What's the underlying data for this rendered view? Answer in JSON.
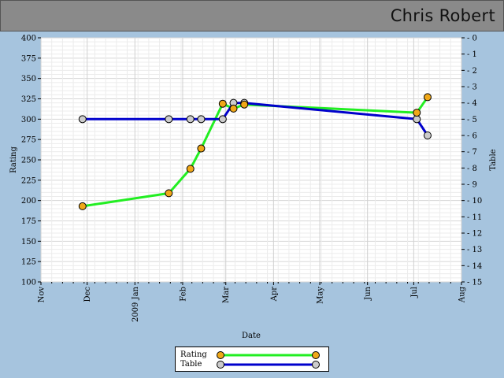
{
  "header": {
    "title": "Chris Robert"
  },
  "colors": {
    "rating_line": "#22ee22",
    "rating_marker": "#f0a818",
    "table_line": "#0000cc",
    "table_marker": "#cccccc",
    "background": "#a6c4de",
    "header": "#8a8a8a"
  },
  "chart_data": {
    "type": "line",
    "xlabel": "Date",
    "ylabel": "Rating",
    "y2label": "Table",
    "ylim": [
      100,
      400
    ],
    "y2lim": [
      0,
      15
    ],
    "y2_inverted": true,
    "xlim": [
      "2008-11-01",
      "2009-08-01"
    ],
    "x_ticks": [
      {
        "date": "2008-11-01",
        "label": "Nov"
      },
      {
        "date": "2008-12-01",
        "label": "Dec"
      },
      {
        "date": "2009-01-01",
        "label": "2009 Jan"
      },
      {
        "date": "2009-02-01",
        "label": "Feb"
      },
      {
        "date": "2009-03-01",
        "label": "Mar"
      },
      {
        "date": "2009-04-01",
        "label": "Apr"
      },
      {
        "date": "2009-05-01",
        "label": "May"
      },
      {
        "date": "2009-06-01",
        "label": "Jun"
      },
      {
        "date": "2009-07-01",
        "label": "Jul"
      },
      {
        "date": "2009-08-01",
        "label": "Aug"
      }
    ],
    "y_ticks": [
      100,
      125,
      150,
      175,
      200,
      225,
      250,
      275,
      300,
      325,
      350,
      375,
      400
    ],
    "y2_ticks": [
      0,
      1,
      2,
      3,
      4,
      5,
      6,
      7,
      8,
      9,
      10,
      11,
      12,
      13,
      14,
      15
    ],
    "grid": true,
    "legend_position": "bottom-center",
    "series": [
      {
        "name": "Rating",
        "axis": "left",
        "points": [
          {
            "x": "2008-11-28",
            "y": 193
          },
          {
            "x": "2009-01-23",
            "y": 209
          },
          {
            "x": "2009-02-06",
            "y": 239
          },
          {
            "x": "2009-02-13",
            "y": 264
          },
          {
            "x": "2009-02-27",
            "y": 319
          },
          {
            "x": "2009-03-06",
            "y": 313
          },
          {
            "x": "2009-03-13",
            "y": 318
          },
          {
            "x": "2009-07-03",
            "y": 308
          },
          {
            "x": "2009-07-10",
            "y": 327
          }
        ]
      },
      {
        "name": "Table",
        "axis": "right",
        "points": [
          {
            "x": "2008-11-28",
            "y": 5
          },
          {
            "x": "2009-01-23",
            "y": 5
          },
          {
            "x": "2009-02-06",
            "y": 5
          },
          {
            "x": "2009-02-13",
            "y": 5
          },
          {
            "x": "2009-02-27",
            "y": 5
          },
          {
            "x": "2009-03-06",
            "y": 4
          },
          {
            "x": "2009-03-13",
            "y": 4
          },
          {
            "x": "2009-07-03",
            "y": 5
          },
          {
            "x": "2009-07-10",
            "y": 6
          }
        ]
      }
    ]
  }
}
